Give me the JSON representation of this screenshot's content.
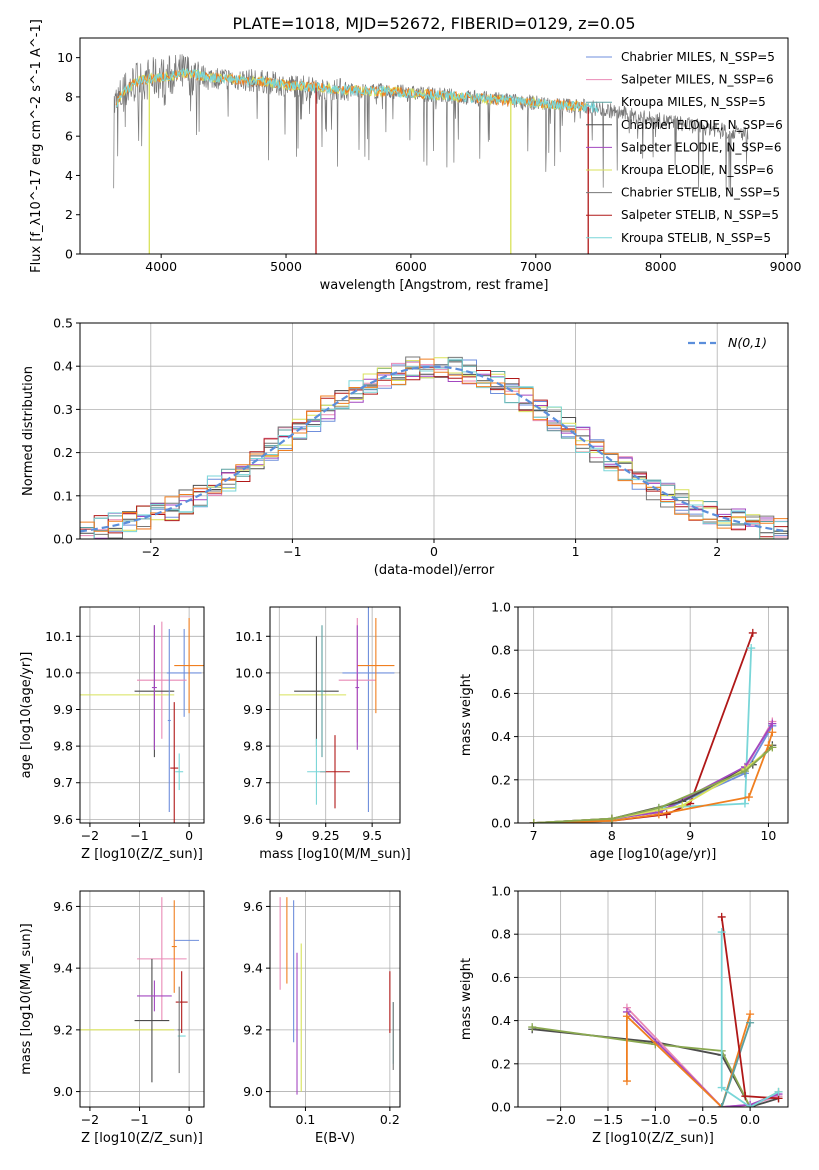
{
  "figure_title": "PLATE=1018, MJD=52672, FIBERID=0129, z=0.05",
  "colors": {
    "Chabrier MILES": "#6f8fdc",
    "Salpeter MILES": "#e98ab6",
    "Kroupa MILES": "#5aa0a0",
    "Chabrier ELODIE": "#4c4c4c",
    "Salpeter ELODIE": "#a347c0",
    "Kroupa ELODIE": "#d8e25a",
    "Chabrier STELIB": "#777777",
    "Salpeter STELIB": "#b01818",
    "Kroupa STELIB": "#79d6d8",
    "normal": "#5b8edb",
    "orange": "#f07f20",
    "olive": "#8aa850",
    "grid": "#b0b0b0"
  },
  "chart_data": [
    {
      "id": "spectrum",
      "type": "line",
      "xlabel": "wavelength [Angstrom, rest frame]",
      "ylabel": "Flux [f_λ10^-17 erg cm^-2 s^-1 A^-1]",
      "xlim": [
        3350,
        9020
      ],
      "ylim": [
        0,
        11
      ],
      "xticks": [
        4000,
        5000,
        6000,
        7000,
        8000,
        9000
      ],
      "yticks": [
        0,
        2,
        4,
        6,
        8,
        10
      ],
      "grid": false,
      "legend_loc": "upper right",
      "legend": [
        {
          "name": "Chabrier MILES",
          "nssp": "N_SSP=5"
        },
        {
          "name": "Salpeter MILES",
          "nssp": "N_SSP=6"
        },
        {
          "name": "Kroupa MILES",
          "nssp": "N_SSP=5"
        },
        {
          "name": "Chabrier ELODIE",
          "nssp": "N_SSP=6"
        },
        {
          "name": "Salpeter ELODIE",
          "nssp": "N_SSP=6"
        },
        {
          "name": "Kroupa ELODIE",
          "nssp": "N_SSP=6"
        },
        {
          "name": "Chabrier STELIB",
          "nssp": "N_SSP=5"
        },
        {
          "name": "Salpeter STELIB",
          "nssp": "N_SSP=5"
        },
        {
          "name": "Kroupa STELIB",
          "nssp": "N_SSP=5"
        }
      ],
      "continuum": [
        [
          3620,
          7.5
        ],
        [
          3700,
          8.2
        ],
        [
          3800,
          8.8
        ],
        [
          3900,
          8.9
        ],
        [
          4000,
          9.0
        ],
        [
          4200,
          9.2
        ],
        [
          4400,
          9.0
        ],
        [
          4600,
          8.9
        ],
        [
          4800,
          8.8
        ],
        [
          5000,
          8.6
        ],
        [
          5200,
          8.5
        ],
        [
          5400,
          8.4
        ],
        [
          5600,
          8.3
        ],
        [
          5800,
          8.3
        ],
        [
          6000,
          8.2
        ],
        [
          6200,
          8.1
        ],
        [
          6400,
          8.0
        ],
        [
          6600,
          7.9
        ],
        [
          6800,
          7.8
        ],
        [
          7000,
          7.7
        ],
        [
          7200,
          7.6
        ],
        [
          7400,
          7.5
        ],
        [
          7600,
          7.3
        ],
        [
          7800,
          7.0
        ],
        [
          8000,
          6.8
        ],
        [
          8200,
          6.6
        ],
        [
          8400,
          6.4
        ],
        [
          8600,
          6.2
        ],
        [
          8700,
          6.1
        ]
      ],
      "drops": [
        {
          "series": "Kroupa ELODIE",
          "x": 3905,
          "y": 0
        },
        {
          "series": "Salpeter STELIB",
          "x": 5240,
          "y": 0
        },
        {
          "series": "Kroupa ELODIE",
          "x": 6800,
          "y": 0
        },
        {
          "series": "Salpeter STELIB",
          "x": 7420,
          "y": 0
        }
      ]
    },
    {
      "id": "residuals",
      "type": "histogram",
      "xlabel": "(data-model)/error",
      "ylabel": "Normed distribution",
      "xlim": [
        -2.5,
        2.5
      ],
      "ylim": [
        0,
        0.5
      ],
      "xticks": [
        -2,
        -1,
        0,
        1,
        2
      ],
      "yticks": [
        0.0,
        0.1,
        0.2,
        0.3,
        0.4,
        0.5
      ],
      "grid": true,
      "legend_loc": "upper right",
      "legend": [
        {
          "name": "N(0,1)"
        }
      ],
      "bin_width": 0.1,
      "peak_values": [
        0.48,
        0.47,
        0.46,
        0.45,
        0.44,
        0.43,
        0.42,
        0.4,
        0.39,
        0.38
      ]
    },
    {
      "id": "age_vs_Z",
      "type": "errorbar",
      "xlabel": "Z [log10(Z/Z_sun)]",
      "ylabel": "age [log10(age/yr)]",
      "xlim": [
        -2.2,
        0.3
      ],
      "ylim": [
        9.59,
        10.18
      ],
      "xticks": [
        -2,
        -1,
        0
      ],
      "yticks": [
        9.6,
        9.7,
        9.8,
        9.9,
        10.0,
        10.1
      ],
      "grid": true,
      "points": [
        {
          "series": "Chabrier MILES",
          "x": -0.1,
          "xerr": 0.35,
          "y": 10.0,
          "yerr": 0.12
        },
        {
          "series": "Salpeter MILES",
          "x": -0.55,
          "xerr": 0.5,
          "y": 9.98,
          "yerr": 0.16
        },
        {
          "series": "Kroupa ELODIE",
          "x": -1.3,
          "xerr": 1.0,
          "y": 9.94,
          "yerr": 0.0
        },
        {
          "series": "orange",
          "x": 0.0,
          "xerr": 0.3,
          "y": 10.02,
          "yerr": 0.13
        },
        {
          "series": "Chabrier ELODIE",
          "x": -0.7,
          "xerr": 0.4,
          "y": 9.95,
          "yerr": 0.18
        },
        {
          "series": "Salpeter ELODIE",
          "x": -0.7,
          "xerr": 0.05,
          "y": 9.96,
          "yerr": 0.17
        },
        {
          "series": "Salpeter STELIB",
          "x": -0.3,
          "xerr": 0.08,
          "y": 9.74,
          "yerr": 0.18
        },
        {
          "series": "Kroupa STELIB",
          "x": -0.2,
          "xerr": 0.08,
          "y": 9.73,
          "yerr": 0.05
        },
        {
          "series": "Chabrier MILES",
          "x": -0.4,
          "xerr": 0.03,
          "y": 9.87,
          "yerr": 0.25
        }
      ]
    },
    {
      "id": "age_vs_mass",
      "type": "errorbar",
      "xlabel": "mass [log10(M/M_sun)]",
      "ylabel": "",
      "xlim": [
        8.95,
        9.65
      ],
      "ylim": [
        9.59,
        10.18
      ],
      "xticks": [
        9.0,
        9.25,
        9.5
      ],
      "yticks": [
        9.6,
        9.7,
        9.8,
        9.9,
        10.0,
        10.1
      ],
      "grid": true,
      "points": [
        {
          "series": "Chabrier MILES",
          "x": 9.48,
          "xerr": 0.14,
          "y": 10.0,
          "yerr": 0.38
        },
        {
          "series": "Salpeter MILES",
          "x": 9.42,
          "xerr": 0.1,
          "y": 9.98,
          "yerr": 0.17
        },
        {
          "series": "Kroupa ELODIE",
          "x": 9.18,
          "xerr": 0.18,
          "y": 9.94,
          "yerr": 0.0
        },
        {
          "series": "orange",
          "x": 9.52,
          "xerr": 0.1,
          "y": 10.02,
          "yerr": 0.13
        },
        {
          "series": "Chabrier ELODIE",
          "x": 9.2,
          "xerr": 0.12,
          "y": 9.95,
          "yerr": 0.15
        },
        {
          "series": "Salpeter ELODIE",
          "x": 9.42,
          "xerr": 0.01,
          "y": 9.96,
          "yerr": 0.17
        },
        {
          "series": "Salpeter STELIB",
          "x": 9.3,
          "xerr": 0.08,
          "y": 9.73,
          "yerr": 0.1
        },
        {
          "series": "Kroupa STELIB",
          "x": 9.2,
          "xerr": 0.05,
          "y": 9.73,
          "yerr": 0.09
        },
        {
          "series": "Kroupa MILES",
          "x": 9.23,
          "xerr": 0.01,
          "y": 9.95,
          "yerr": 0.18
        }
      ]
    },
    {
      "id": "weight_vs_age",
      "type": "line",
      "xlabel": "age [log10(age/yr)]",
      "ylabel": "mass weight",
      "xlim": [
        6.8,
        10.25
      ],
      "ylim": [
        0,
        1.0
      ],
      "xticks": [
        7,
        8,
        9,
        10
      ],
      "yticks": [
        0.0,
        0.2,
        0.4,
        0.6,
        0.8,
        1.0
      ],
      "grid": true,
      "series": [
        {
          "name": "Salpeter STELIB",
          "x": [
            7.0,
            8.0,
            8.7,
            9.0,
            9.8
          ],
          "y": [
            0.0,
            0.01,
            0.04,
            0.09,
            0.88
          ]
        },
        {
          "name": "Kroupa STELIB",
          "x": [
            7.0,
            8.0,
            8.6,
            9.7,
            9.78
          ],
          "y": [
            0.0,
            0.01,
            0.07,
            0.09,
            0.81
          ]
        },
        {
          "name": "Salpeter MILES",
          "x": [
            7.0,
            8.0,
            8.6,
            9.7,
            10.05
          ],
          "y": [
            0.0,
            0.02,
            0.05,
            0.25,
            0.47
          ]
        },
        {
          "name": "Chabrier MILES",
          "x": [
            7.0,
            8.0,
            8.6,
            9.7,
            10.05
          ],
          "y": [
            0.0,
            0.02,
            0.05,
            0.23,
            0.45
          ]
        },
        {
          "name": "Salpeter ELODIE",
          "x": [
            7.0,
            8.0,
            8.6,
            9.7,
            10.05
          ],
          "y": [
            0.0,
            0.02,
            0.05,
            0.26,
            0.46
          ]
        },
        {
          "name": "Chabrier ELODIE",
          "x": [
            7.0,
            8.0,
            8.9,
            9.8,
            10.05
          ],
          "y": [
            0.0,
            0.02,
            0.1,
            0.27,
            0.36
          ]
        },
        {
          "name": "Kroupa ELODIE",
          "x": [
            7.0,
            8.0,
            8.9,
            9.7,
            10.05
          ],
          "y": [
            0.0,
            0.02,
            0.08,
            0.25,
            0.35
          ]
        },
        {
          "name": "orange",
          "x": [
            7.0,
            8.0,
            8.6,
            9.75,
            10.0,
            10.05
          ],
          "y": [
            0.0,
            0.01,
            0.04,
            0.12,
            0.36,
            0.42
          ]
        },
        {
          "name": "olive",
          "x": [
            7.0,
            8.0,
            8.6,
            9.7,
            10.05
          ],
          "y": [
            0.0,
            0.02,
            0.07,
            0.24,
            0.35
          ]
        }
      ]
    },
    {
      "id": "mass_vs_Z",
      "type": "errorbar",
      "xlabel": "Z [log10(Z/Z_sun)]",
      "ylabel": "mass [log10(M/M_sun)]",
      "xlim": [
        -2.2,
        0.3
      ],
      "ylim": [
        8.95,
        9.65
      ],
      "xticks": [
        -2,
        -1,
        0
      ],
      "yticks": [
        9.0,
        9.2,
        9.4,
        9.6
      ],
      "grid": true,
      "points": [
        {
          "series": "Chabrier MILES",
          "x": -0.05,
          "xerr": 0.25,
          "y": 9.49,
          "yerr": 0.0
        },
        {
          "series": "Salpeter MILES",
          "x": -0.55,
          "xerr": 0.5,
          "y": 9.43,
          "yerr": 0.2
        },
        {
          "series": "Kroupa ELODIE",
          "x": -1.3,
          "xerr": 1.0,
          "y": 9.2,
          "yerr": 0.0
        },
        {
          "series": "orange",
          "x": -0.3,
          "xerr": 0.05,
          "y": 9.47,
          "yerr": 0.15
        },
        {
          "series": "Chabrier ELODIE",
          "x": -0.75,
          "xerr": 0.35,
          "y": 9.23,
          "yerr": 0.2
        },
        {
          "series": "Salpeter ELODIE",
          "x": -0.7,
          "xerr": 0.35,
          "y": 9.31,
          "yerr": 0.05
        },
        {
          "series": "Salpeter STELIB",
          "x": -0.15,
          "xerr": 0.12,
          "y": 9.29,
          "yerr": 0.1
        },
        {
          "series": "Kroupa STELIB",
          "x": -0.15,
          "xerr": 0.08,
          "y": 9.18,
          "yerr": 0.0
        },
        {
          "series": "Chabrier STELIB",
          "x": -0.2,
          "xerr": 0.03,
          "y": 9.2,
          "yerr": 0.14
        }
      ]
    },
    {
      "id": "mass_vs_ebv",
      "type": "errorbar",
      "xlabel": "E(B-V)",
      "ylabel": "",
      "xlim": [
        0.058,
        0.212
      ],
      "ylim": [
        8.95,
        9.65
      ],
      "xticks": [
        0.1,
        0.2
      ],
      "yticks": [
        9.0,
        9.2,
        9.4,
        9.6
      ],
      "grid": true,
      "points": [
        {
          "series": "Salpeter MILES",
          "x": 0.07,
          "xerr": 0.0,
          "y": 9.48,
          "yerr": 0.15
        },
        {
          "series": "orange",
          "x": 0.078,
          "xerr": 0.0,
          "y": 9.49,
          "yerr": 0.14
        },
        {
          "series": "Chabrier MILES",
          "x": 0.086,
          "xerr": 0.0,
          "y": 9.39,
          "yerr": 0.23
        },
        {
          "series": "Salpeter ELODIE",
          "x": 0.09,
          "xerr": 0.0,
          "y": 9.22,
          "yerr": 0.23
        },
        {
          "series": "Kroupa ELODIE",
          "x": 0.095,
          "xerr": 0.0,
          "y": 9.24,
          "yerr": 0.24
        },
        {
          "series": "Salpeter STELIB",
          "x": 0.2,
          "xerr": 0.0,
          "y": 9.29,
          "yerr": 0.1
        },
        {
          "series": "Kroupa STELIB",
          "x": 0.204,
          "xerr": 0.0,
          "y": 9.19,
          "yerr": 0.1
        },
        {
          "series": "Chabrier STELIB",
          "x": 0.204,
          "xerr": 0.0,
          "y": 9.18,
          "yerr": 0.11
        }
      ]
    },
    {
      "id": "weight_vs_Z",
      "type": "line",
      "xlabel": "Z [log10(Z/Z_sun)]",
      "ylabel": "mass weight",
      "xlim": [
        -2.45,
        0.4
      ],
      "ylim": [
        0,
        1.0
      ],
      "xticks": [
        -2.0,
        -1.5,
        -1.0,
        -0.5,
        0.0
      ],
      "yticks": [
        0.0,
        0.2,
        0.4,
        0.6,
        0.8,
        1.0
      ],
      "grid": true,
      "series": [
        {
          "name": "Chabrier ELODIE",
          "x": [
            -2.3,
            -1.0,
            -0.3,
            0.0,
            0.3
          ],
          "y": [
            0.36,
            0.3,
            0.24,
            0.0,
            0.04
          ]
        },
        {
          "name": "olive",
          "x": [
            -2.3,
            -1.0,
            -0.3,
            0.0,
            0.3
          ],
          "y": [
            0.37,
            0.29,
            0.26,
            0.0,
            0.07
          ]
        },
        {
          "name": "Salpeter MILES",
          "x": [
            -1.3,
            -0.3,
            0.0,
            0.3
          ],
          "y": [
            0.46,
            0.0,
            0.01,
            0.05
          ]
        },
        {
          "name": "Salpeter ELODIE",
          "x": [
            -1.3,
            -0.3,
            0.0,
            0.3
          ],
          "y": [
            0.44,
            0.0,
            0.01,
            0.06
          ]
        },
        {
          "name": "orange",
          "x": [
            -1.3,
            -1.3,
            -0.3,
            0.0
          ],
          "y": [
            0.12,
            0.42,
            0.0,
            0.43
          ]
        },
        {
          "name": "Kroupa MILES",
          "x": [
            -0.3,
            0.0
          ],
          "y": [
            0.0,
            0.39
          ]
        },
        {
          "name": "Salpeter STELIB",
          "x": [
            -0.3,
            -0.05,
            0.3
          ],
          "y": [
            0.88,
            0.05,
            0.04
          ]
        },
        {
          "name": "Kroupa STELIB",
          "x": [
            -0.3,
            -0.3,
            0.0,
            0.3
          ],
          "y": [
            0.81,
            0.09,
            0.0,
            0.07
          ]
        }
      ]
    }
  ]
}
